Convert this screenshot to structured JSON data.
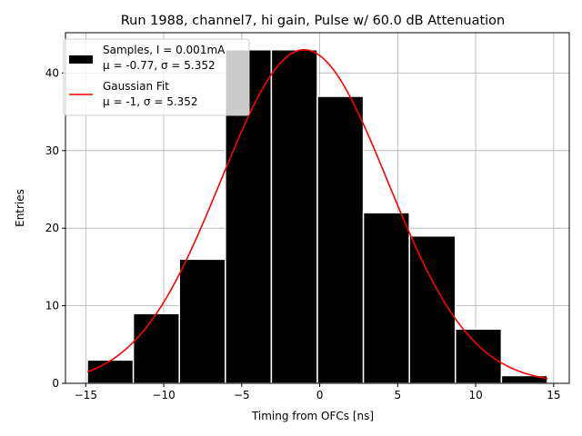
{
  "chart_data": {
    "type": "bar",
    "title": "Run 1988, channel7, hi gain, Pulse w/ 60.0 dB Attenuation",
    "xlabel": "Timing from OFCs [ns]",
    "ylabel": "Entries",
    "xlim": [
      -16.3,
      16.0
    ],
    "ylim": [
      0,
      45.2
    ],
    "grid": true,
    "x_ticks": [
      {
        "value": -15,
        "label": "−15"
      },
      {
        "value": -10,
        "label": "−10"
      },
      {
        "value": -5,
        "label": "−5"
      },
      {
        "value": 0,
        "label": "0"
      },
      {
        "value": 5,
        "label": "5"
      },
      {
        "value": 10,
        "label": "10"
      },
      {
        "value": 15,
        "label": "15"
      }
    ],
    "y_ticks": [
      {
        "value": 0,
        "label": "0"
      },
      {
        "value": 10,
        "label": "10"
      },
      {
        "value": 20,
        "label": "20"
      },
      {
        "value": 30,
        "label": "30"
      },
      {
        "value": 40,
        "label": "40"
      }
    ],
    "histogram": {
      "name": "Samples, I = 0.001mA",
      "stats_label": "μ = -0.77, σ = 5.352",
      "color": "#000000",
      "edge_color": "#ffffff",
      "bin_edges": [
        -14.9,
        -11.95,
        -9.0,
        -6.05,
        -3.1,
        -0.15,
        2.8,
        5.75,
        8.7,
        11.65,
        14.6
      ],
      "counts": [
        3,
        9,
        16,
        43,
        43,
        37,
        22,
        19,
        7,
        1
      ]
    },
    "fit": {
      "name": "Gaussian Fit",
      "stats_label": "μ = -1, σ = 5.352",
      "color": "#ff0000",
      "type": "gaussian",
      "mu": -1,
      "sigma": 5.352,
      "amplitude": 43,
      "x_range": [
        -14.9,
        14.6
      ]
    },
    "legend": {
      "placement": "upper-left"
    }
  }
}
